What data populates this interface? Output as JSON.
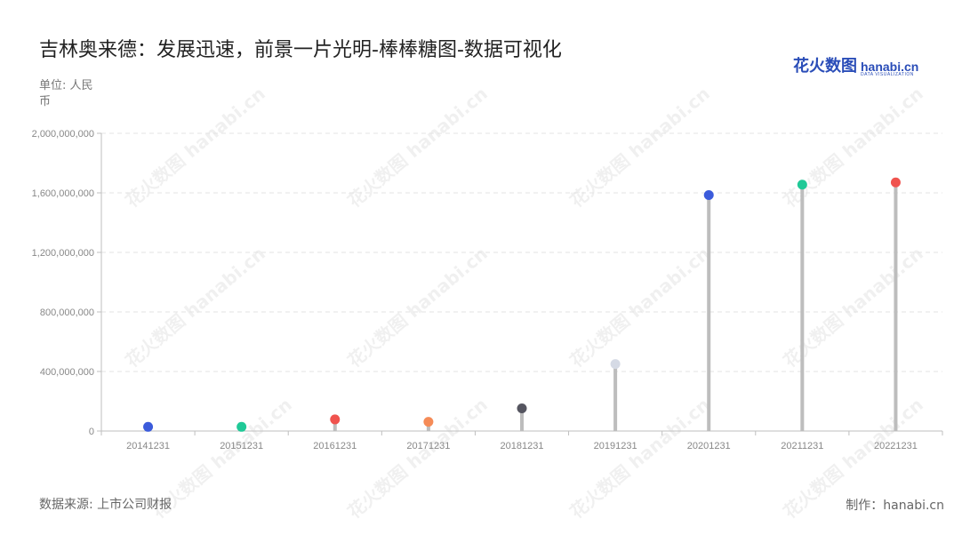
{
  "title": "吉林奥来德：发展迅速，前景一片光明-棒棒糖图-数据可视化",
  "logo": {
    "cn": "花火数图",
    "en": "hanabi.cn",
    "sub": "DATA VISUALIZATION"
  },
  "unit_label": "单位: 人民币",
  "source_label": "数据来源: 上市公司财报",
  "maker_label": "制作：hanabi.cn",
  "watermark_text": "花火数图 hanabi.cn",
  "colors": {
    "stem": "#bdbdbd",
    "grid": "#e3e3e3",
    "axis": "#bfbfbf",
    "tick_text": "#888888"
  },
  "chart_data": {
    "type": "lollipop",
    "categories": [
      "20141231",
      "20151231",
      "20161231",
      "20171231",
      "20181231",
      "20191231",
      "20201231",
      "20211231",
      "20221231"
    ],
    "values": [
      28000000,
      28000000,
      78000000,
      62000000,
      152000000,
      450000000,
      1585000000,
      1655000000,
      1670000000
    ],
    "dot_colors": [
      "#3b5bdb",
      "#20c997",
      "#f0534e",
      "#f58b57",
      "#555560",
      "#d5dae5",
      "#3b5bdb",
      "#20c997",
      "#f0534e"
    ],
    "ylim": [
      0,
      2000000000
    ],
    "yticks": [
      "0",
      "400,000,000",
      "800,000,000",
      "1,200,000,000",
      "1,600,000,000",
      "2,000,000,000"
    ],
    "ytick_values": [
      0,
      400000000,
      800000000,
      1200000000,
      1600000000,
      2000000000
    ],
    "grid": true
  }
}
